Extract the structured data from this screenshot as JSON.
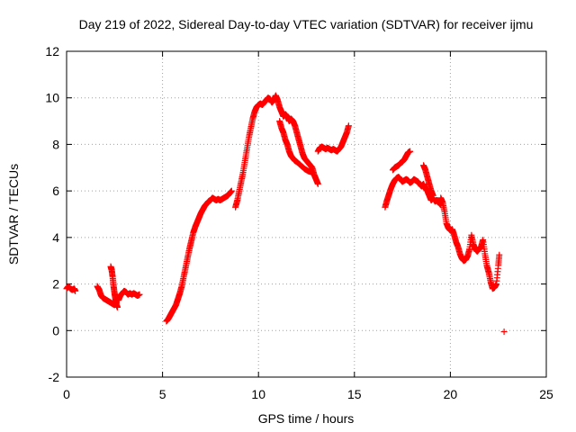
{
  "chart_data": {
    "type": "scatter",
    "title": "Day 219 of 2022, Sidereal Day-to-day VTEC variation (SDTVAR) for receiver ijmu",
    "xlabel": "GPS time / hours",
    "ylabel": "SDTVAR / TECUs",
    "xlim": [
      0,
      25
    ],
    "ylim": [
      -2,
      12
    ],
    "xticks": [
      "0",
      "5",
      "10",
      "15",
      "20",
      "25"
    ],
    "yticks": [
      "-2",
      "0",
      "2",
      "4",
      "6",
      "8",
      "10",
      "12"
    ],
    "grid": true,
    "marker": "plus",
    "color": "#ff0000",
    "segments": [
      [
        [
          0.0,
          1.8
        ],
        [
          0.1,
          1.9
        ],
        [
          0.2,
          1.8
        ],
        [
          0.3,
          1.75
        ],
        [
          0.4,
          1.8
        ],
        [
          0.45,
          1.7
        ]
      ],
      [
        [
          1.6,
          1.9
        ],
        [
          1.7,
          1.75
        ],
        [
          1.8,
          1.5
        ],
        [
          1.9,
          1.4
        ],
        [
          2.0,
          1.35
        ],
        [
          2.1,
          1.3
        ],
        [
          2.2,
          1.25
        ],
        [
          2.3,
          1.2
        ],
        [
          2.4,
          1.15
        ],
        [
          2.5,
          1.1
        ],
        [
          2.6,
          1.2
        ]
      ],
      [
        [
          2.3,
          2.75
        ],
        [
          2.35,
          2.6
        ],
        [
          2.4,
          2.3
        ],
        [
          2.45,
          1.9
        ],
        [
          2.5,
          1.6
        ],
        [
          2.55,
          1.35
        ],
        [
          2.6,
          1.1
        ],
        [
          2.65,
          1.0
        ]
      ],
      [
        [
          2.7,
          1.3
        ],
        [
          2.8,
          1.5
        ],
        [
          2.9,
          1.6
        ],
        [
          3.0,
          1.7
        ],
        [
          3.1,
          1.65
        ],
        [
          3.2,
          1.55
        ],
        [
          3.3,
          1.6
        ],
        [
          3.4,
          1.55
        ],
        [
          3.5,
          1.6
        ],
        [
          3.6,
          1.55
        ],
        [
          3.7,
          1.5
        ],
        [
          3.8,
          1.55
        ]
      ],
      [
        [
          5.2,
          0.4
        ],
        [
          5.3,
          0.5
        ],
        [
          5.4,
          0.65
        ],
        [
          5.5,
          0.8
        ],
        [
          5.6,
          0.95
        ],
        [
          5.7,
          1.1
        ],
        [
          5.8,
          1.35
        ],
        [
          5.9,
          1.6
        ],
        [
          6.0,
          1.9
        ],
        [
          6.1,
          2.3
        ],
        [
          6.2,
          2.7
        ],
        [
          6.3,
          3.1
        ],
        [
          6.4,
          3.5
        ],
        [
          6.5,
          3.85
        ],
        [
          6.6,
          4.2
        ],
        [
          6.7,
          4.45
        ],
        [
          6.8,
          4.65
        ],
        [
          6.9,
          4.85
        ],
        [
          7.0,
          5.05
        ],
        [
          7.1,
          5.2
        ],
        [
          7.2,
          5.35
        ],
        [
          7.3,
          5.45
        ],
        [
          7.4,
          5.55
        ],
        [
          7.5,
          5.6
        ],
        [
          7.6,
          5.7
        ],
        [
          7.7,
          5.65
        ],
        [
          7.8,
          5.6
        ],
        [
          7.9,
          5.65
        ],
        [
          8.0,
          5.6
        ],
        [
          8.1,
          5.65
        ],
        [
          8.2,
          5.7
        ],
        [
          8.3,
          5.75
        ],
        [
          8.4,
          5.8
        ],
        [
          8.5,
          5.9
        ],
        [
          8.6,
          6.0
        ]
      ],
      [
        [
          8.8,
          5.3
        ],
        [
          8.9,
          5.6
        ],
        [
          9.0,
          6.0
        ],
        [
          9.1,
          6.4
        ],
        [
          9.2,
          6.8
        ],
        [
          9.3,
          7.3
        ],
        [
          9.4,
          7.8
        ],
        [
          9.5,
          8.3
        ],
        [
          9.6,
          8.7
        ],
        [
          9.7,
          9.1
        ],
        [
          9.8,
          9.4
        ],
        [
          9.9,
          9.6
        ],
        [
          10.0,
          9.7
        ],
        [
          10.1,
          9.75
        ],
        [
          10.2,
          9.7
        ],
        [
          10.3,
          9.8
        ],
        [
          10.4,
          9.9
        ],
        [
          10.5,
          10.0
        ],
        [
          10.6,
          9.95
        ],
        [
          10.7,
          9.8
        ],
        [
          10.8,
          9.9
        ],
        [
          10.9,
          10.1
        ],
        [
          11.0,
          9.9
        ],
        [
          11.1,
          9.6
        ],
        [
          11.2,
          9.4
        ],
        [
          11.3,
          9.2
        ],
        [
          11.4,
          9.3
        ],
        [
          11.5,
          9.2
        ],
        [
          11.6,
          9.0
        ],
        [
          11.7,
          9.1
        ],
        [
          11.8,
          9.0
        ],
        [
          11.9,
          8.8
        ],
        [
          12.0,
          8.5
        ],
        [
          12.1,
          8.2
        ],
        [
          12.2,
          7.9
        ],
        [
          12.3,
          7.6
        ],
        [
          12.4,
          7.4
        ],
        [
          12.5,
          7.3
        ],
        [
          12.6,
          7.2
        ],
        [
          12.7,
          7.1
        ],
        [
          12.8,
          7.0
        ],
        [
          12.9,
          6.7
        ],
        [
          13.0,
          6.5
        ],
        [
          13.1,
          6.3
        ]
      ],
      [
        [
          11.1,
          9.0
        ],
        [
          11.2,
          8.7
        ],
        [
          11.3,
          8.5
        ],
        [
          11.4,
          8.2
        ],
        [
          11.5,
          8.0
        ],
        [
          11.6,
          7.7
        ],
        [
          11.7,
          7.5
        ],
        [
          11.8,
          7.4
        ],
        [
          11.9,
          7.3
        ],
        [
          12.0,
          7.25
        ],
        [
          12.2,
          7.1
        ],
        [
          12.4,
          6.95
        ],
        [
          12.6,
          6.85
        ],
        [
          12.8,
          6.8
        ]
      ],
      [
        [
          13.1,
          7.7
        ],
        [
          13.2,
          7.85
        ],
        [
          13.3,
          7.9
        ],
        [
          13.4,
          7.85
        ],
        [
          13.5,
          7.8
        ],
        [
          13.6,
          7.85
        ],
        [
          13.7,
          7.8
        ],
        [
          13.8,
          7.75
        ],
        [
          13.9,
          7.8
        ],
        [
          14.0,
          7.75
        ],
        [
          14.1,
          7.7
        ],
        [
          14.2,
          7.8
        ],
        [
          14.3,
          7.9
        ],
        [
          14.4,
          8.1
        ],
        [
          14.5,
          8.3
        ],
        [
          14.6,
          8.5
        ],
        [
          14.7,
          8.8
        ]
      ],
      [
        [
          16.6,
          5.3
        ],
        [
          16.7,
          5.6
        ],
        [
          16.8,
          5.85
        ],
        [
          16.9,
          6.1
        ],
        [
          17.0,
          6.3
        ],
        [
          17.1,
          6.45
        ],
        [
          17.2,
          6.55
        ],
        [
          17.3,
          6.6
        ],
        [
          17.4,
          6.5
        ],
        [
          17.5,
          6.4
        ],
        [
          17.6,
          6.45
        ],
        [
          17.7,
          6.5
        ],
        [
          17.8,
          6.45
        ],
        [
          17.9,
          6.35
        ],
        [
          18.0,
          6.4
        ],
        [
          18.1,
          6.5
        ],
        [
          18.2,
          6.45
        ],
        [
          18.3,
          6.4
        ],
        [
          18.4,
          6.3
        ],
        [
          18.5,
          6.2
        ],
        [
          18.6,
          6.3
        ],
        [
          18.7,
          6.1
        ],
        [
          18.8,
          6.0
        ],
        [
          18.9,
          5.8
        ],
        [
          19.0,
          5.6
        ],
        [
          19.1,
          5.7
        ],
        [
          19.2,
          5.55
        ],
        [
          19.3,
          5.6
        ],
        [
          19.4,
          5.5
        ],
        [
          19.5,
          5.4
        ]
      ],
      [
        [
          17.0,
          6.9
        ],
        [
          17.1,
          7.0
        ],
        [
          17.2,
          7.05
        ],
        [
          17.3,
          7.1
        ],
        [
          17.4,
          7.2
        ],
        [
          17.5,
          7.25
        ],
        [
          17.6,
          7.35
        ],
        [
          17.7,
          7.5
        ],
        [
          17.8,
          7.65
        ],
        [
          17.9,
          7.7
        ]
      ],
      [
        [
          18.6,
          7.1
        ],
        [
          18.7,
          6.9
        ],
        [
          18.8,
          6.6
        ],
        [
          18.9,
          6.3
        ],
        [
          19.0,
          6.0
        ],
        [
          19.1,
          5.8
        ]
      ],
      [
        [
          19.5,
          5.7
        ],
        [
          19.6,
          5.5
        ],
        [
          19.7,
          5.1
        ],
        [
          19.8,
          4.6
        ],
        [
          19.9,
          4.4
        ],
        [
          20.0,
          4.3
        ],
        [
          20.1,
          4.35
        ],
        [
          20.2,
          4.1
        ],
        [
          20.3,
          3.8
        ],
        [
          20.4,
          3.6
        ],
        [
          20.5,
          3.3
        ],
        [
          20.6,
          3.1
        ],
        [
          20.7,
          3.0
        ],
        [
          20.8,
          3.05
        ],
        [
          20.9,
          3.2
        ],
        [
          21.0,
          3.5
        ],
        [
          21.1,
          4.1
        ],
        [
          21.2,
          3.7
        ],
        [
          21.3,
          3.5
        ],
        [
          21.4,
          3.4
        ],
        [
          21.5,
          3.5
        ],
        [
          21.6,
          3.6
        ],
        [
          21.7,
          3.9
        ],
        [
          21.8,
          3.3
        ],
        [
          21.9,
          2.8
        ],
        [
          22.0,
          2.5
        ],
        [
          22.1,
          2.1
        ],
        [
          22.2,
          1.8
        ],
        [
          22.3,
          1.85
        ],
        [
          22.4,
          2.0
        ],
        [
          22.5,
          2.8
        ],
        [
          22.55,
          3.25
        ]
      ],
      [
        [
          22.8,
          -0.05
        ]
      ]
    ]
  }
}
